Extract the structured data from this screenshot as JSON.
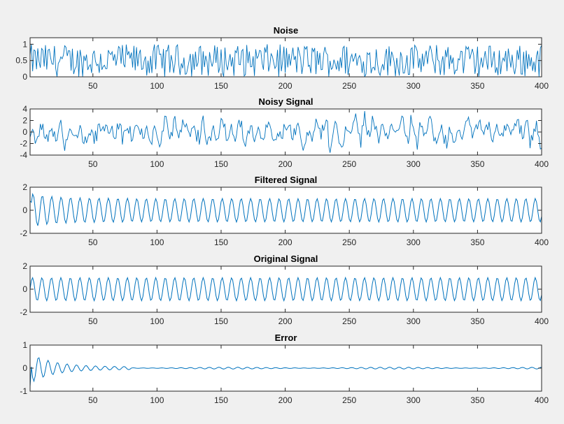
{
  "colors": {
    "line": "#0072bd",
    "axes": "#262626",
    "background": "#f0f0f0",
    "plot": "#ffffff"
  },
  "chart_data": [
    {
      "type": "line",
      "title": "Noise",
      "xlim": [
        1,
        400
      ],
      "ylim": [
        0,
        1.2
      ],
      "xticks": [
        50,
        100,
        150,
        200,
        250,
        300,
        350,
        400
      ],
      "yticks": [
        0,
        0.5,
        1
      ],
      "ytick_labels": [
        "0",
        "0.5",
        "1"
      ],
      "series": [
        {
          "name": "noise",
          "model": "uniform random in [0,1]",
          "n": 400
        }
      ]
    },
    {
      "type": "line",
      "title": "Noisy Signal",
      "xlim": [
        1,
        400
      ],
      "ylim": [
        -4,
        4
      ],
      "xticks": [
        50,
        100,
        150,
        200,
        250,
        300,
        350,
        400
      ],
      "yticks": [
        -4,
        -2,
        0,
        2,
        4
      ],
      "ytick_labels": [
        "-4",
        "-2",
        "0",
        "2",
        "4"
      ],
      "series": [
        {
          "name": "noisy signal",
          "model": "sinusoid plus filtered noise, range about -3.5 to 4",
          "n": 400
        }
      ]
    },
    {
      "type": "line",
      "title": "Filtered Signal",
      "xlim": [
        1,
        400
      ],
      "ylim": [
        -2,
        2
      ],
      "xticks": [
        50,
        100,
        150,
        200,
        250,
        300,
        350,
        400
      ],
      "yticks": [
        -2,
        0,
        2
      ],
      "ytick_labels": [
        "-2",
        "0",
        "2"
      ],
      "series": [
        {
          "name": "filtered",
          "model": "sinusoid amplitude 1 (about 54 cycles over 400 samples), adaptive start",
          "n": 400
        }
      ]
    },
    {
      "type": "line",
      "title": "Original Signal",
      "xlim": [
        1,
        400
      ],
      "ylim": [
        -2,
        2
      ],
      "xticks": [
        50,
        100,
        150,
        200,
        250,
        300,
        350,
        400
      ],
      "yticks": [
        -2,
        0,
        2
      ],
      "ytick_labels": [
        "-2",
        "0",
        "2"
      ],
      "series": [
        {
          "name": "original",
          "model": "sinusoid amplitude 1 (about 54 cycles over 400 samples)",
          "n": 400
        }
      ]
    },
    {
      "type": "line",
      "title": "Error",
      "xlim": [
        1,
        400
      ],
      "ylim": [
        -1,
        1
      ],
      "xticks": [
        50,
        100,
        150,
        200,
        250,
        300,
        350,
        400
      ],
      "yticks": [
        -1,
        0,
        1
      ],
      "ytick_labels": [
        "-1",
        "0",
        "1"
      ],
      "series": [
        {
          "name": "error",
          "model": "decaying oscillation from about -0.8/+0.5 down to about ±0.05 after sample 80",
          "n": 400
        }
      ]
    }
  ]
}
